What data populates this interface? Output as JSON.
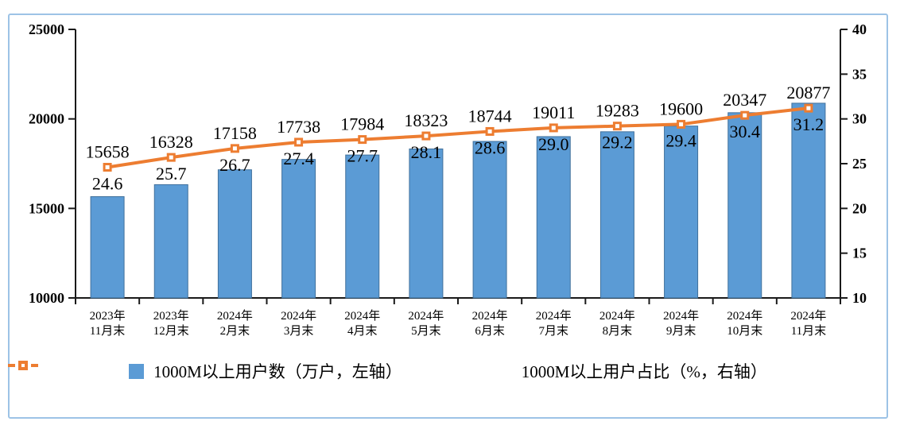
{
  "style": {
    "frame_border_color": "#9DC3E6",
    "bar_fill": "#5B9BD5",
    "bar_border": "#41719C",
    "line_color": "#ED7D31",
    "axis_color": "#1a1a1a",
    "text_color": "#000000"
  },
  "chart_data": {
    "type": "bar",
    "subtype": "combo-bar-line",
    "grid": false,
    "legend_position": "bottom",
    "categories": [
      {
        "line1": "2023年",
        "line2": "11月末"
      },
      {
        "line1": "2023年",
        "line2": "12月末"
      },
      {
        "line1": "2024年",
        "line2": "2月末"
      },
      {
        "line1": "2024年",
        "line2": "3月末"
      },
      {
        "line1": "2024年",
        "line2": "4月末"
      },
      {
        "line1": "2024年",
        "line2": "5月末"
      },
      {
        "line1": "2024年",
        "line2": "6月末"
      },
      {
        "line1": "2024年",
        "line2": "7月末"
      },
      {
        "line1": "2024年",
        "line2": "8月末"
      },
      {
        "line1": "2024年",
        "line2": "9月末"
      },
      {
        "line1": "2024年",
        "line2": "10月末"
      },
      {
        "line1": "2024年",
        "line2": "11月末"
      }
    ],
    "series": [
      {
        "name": "1000M以上用户数（万户，左轴）",
        "type": "bar",
        "axis": "left",
        "values": [
          15658,
          16328,
          17158,
          17738,
          17984,
          18323,
          18744,
          19011,
          19283,
          19600,
          20347,
          20877
        ],
        "labels": [
          "15658",
          "16328",
          "17158",
          "17738",
          "17984",
          "18323",
          "18744",
          "19011",
          "19283",
          "19600",
          "20347",
          "20877"
        ]
      },
      {
        "name": "1000M以上用户占比（%，右轴）",
        "type": "line",
        "axis": "right",
        "values": [
          24.6,
          25.7,
          26.7,
          27.4,
          27.7,
          28.1,
          28.6,
          29.0,
          29.2,
          29.4,
          30.4,
          31.2
        ],
        "labels": [
          "24.6",
          "25.7",
          "26.7",
          "27.4",
          "27.7",
          "28.1",
          "28.6",
          "29.0",
          "29.2",
          "29.4",
          "30.4",
          "31.2"
        ]
      }
    ],
    "left_axis": {
      "min": 10000,
      "max": 25000,
      "tick_labels": [
        "10000",
        "15000",
        "20000",
        "25000"
      ],
      "tick_values": [
        10000,
        15000,
        20000,
        25000
      ]
    },
    "right_axis": {
      "min": 10,
      "max": 40,
      "tick_labels": [
        "10",
        "15",
        "20",
        "25",
        "30",
        "35",
        "40"
      ],
      "tick_values": [
        10,
        15,
        20,
        25,
        30,
        35,
        40
      ]
    }
  }
}
